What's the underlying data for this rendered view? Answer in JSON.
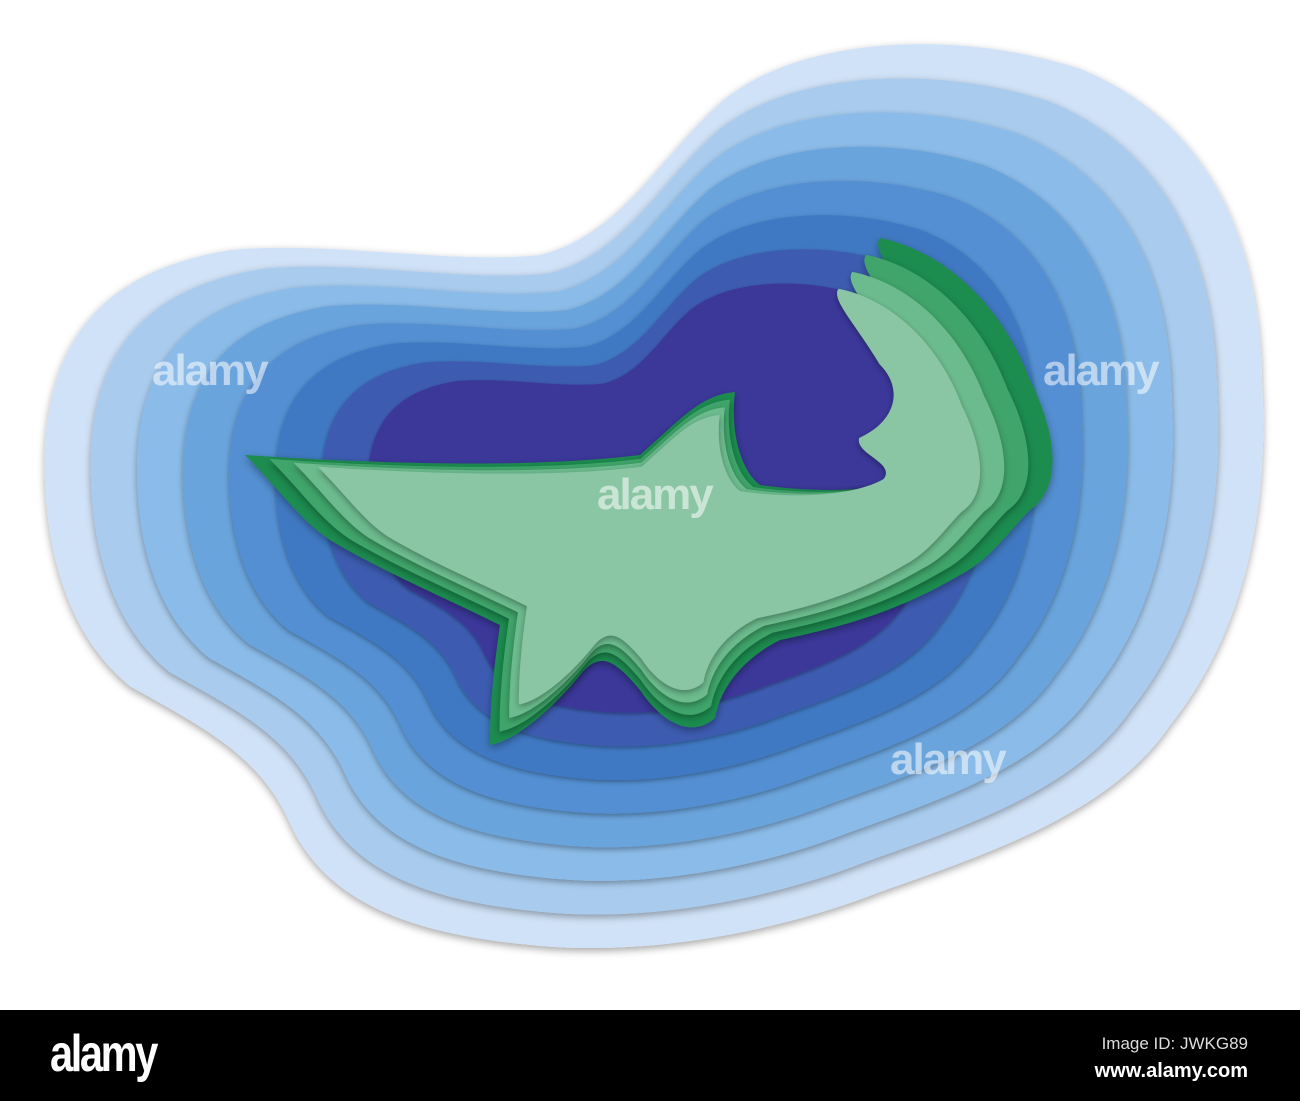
{
  "watermark": {
    "text": "alamy"
  },
  "footer": {
    "logo": "alamy",
    "image_id": "Image ID: JWKG89",
    "website": "www.alamy.com"
  },
  "colors": {
    "blue_layers": [
      "#d0e2f7",
      "#a9ccee",
      "#8bbbe8",
      "#6aa4dc",
      "#538fd2",
      "#3f79c3",
      "#3e5cb1",
      "#3a379a"
    ],
    "green_layers": [
      "#1f8c50",
      "#3fa56a",
      "#6cbb8e",
      "#8ac6a4"
    ]
  }
}
